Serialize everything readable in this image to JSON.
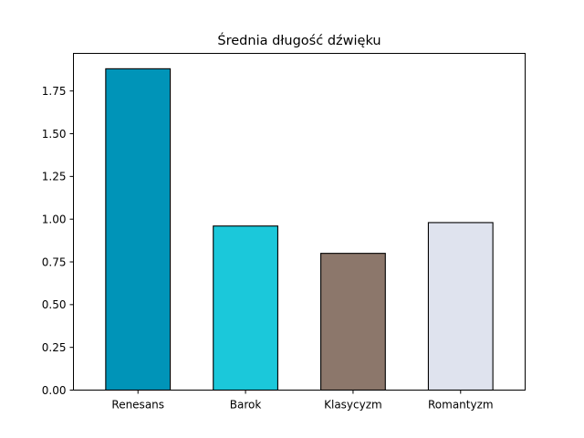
{
  "chart_data": {
    "type": "bar",
    "title": "Średnia długość dźwięku",
    "xlabel": "",
    "ylabel": "",
    "categories": [
      "Renesans",
      "Barok",
      "Klasycyzm",
      "Romantyzm"
    ],
    "values": [
      1.88,
      0.96,
      0.8,
      0.98
    ],
    "colors": [
      "#0094b8",
      "#1bc8da",
      "#8c776b",
      "#dfe3ee"
    ],
    "edge_color": "#000000",
    "ylim": [
      0,
      1.97
    ],
    "yticks": [
      0.0,
      0.25,
      0.5,
      0.75,
      1.0,
      1.25,
      1.5,
      1.75
    ],
    "ytick_labels": [
      "0.00",
      "0.25",
      "0.50",
      "0.75",
      "1.00",
      "1.25",
      "1.50",
      "1.75"
    ],
    "grid": false,
    "legend": "none"
  }
}
